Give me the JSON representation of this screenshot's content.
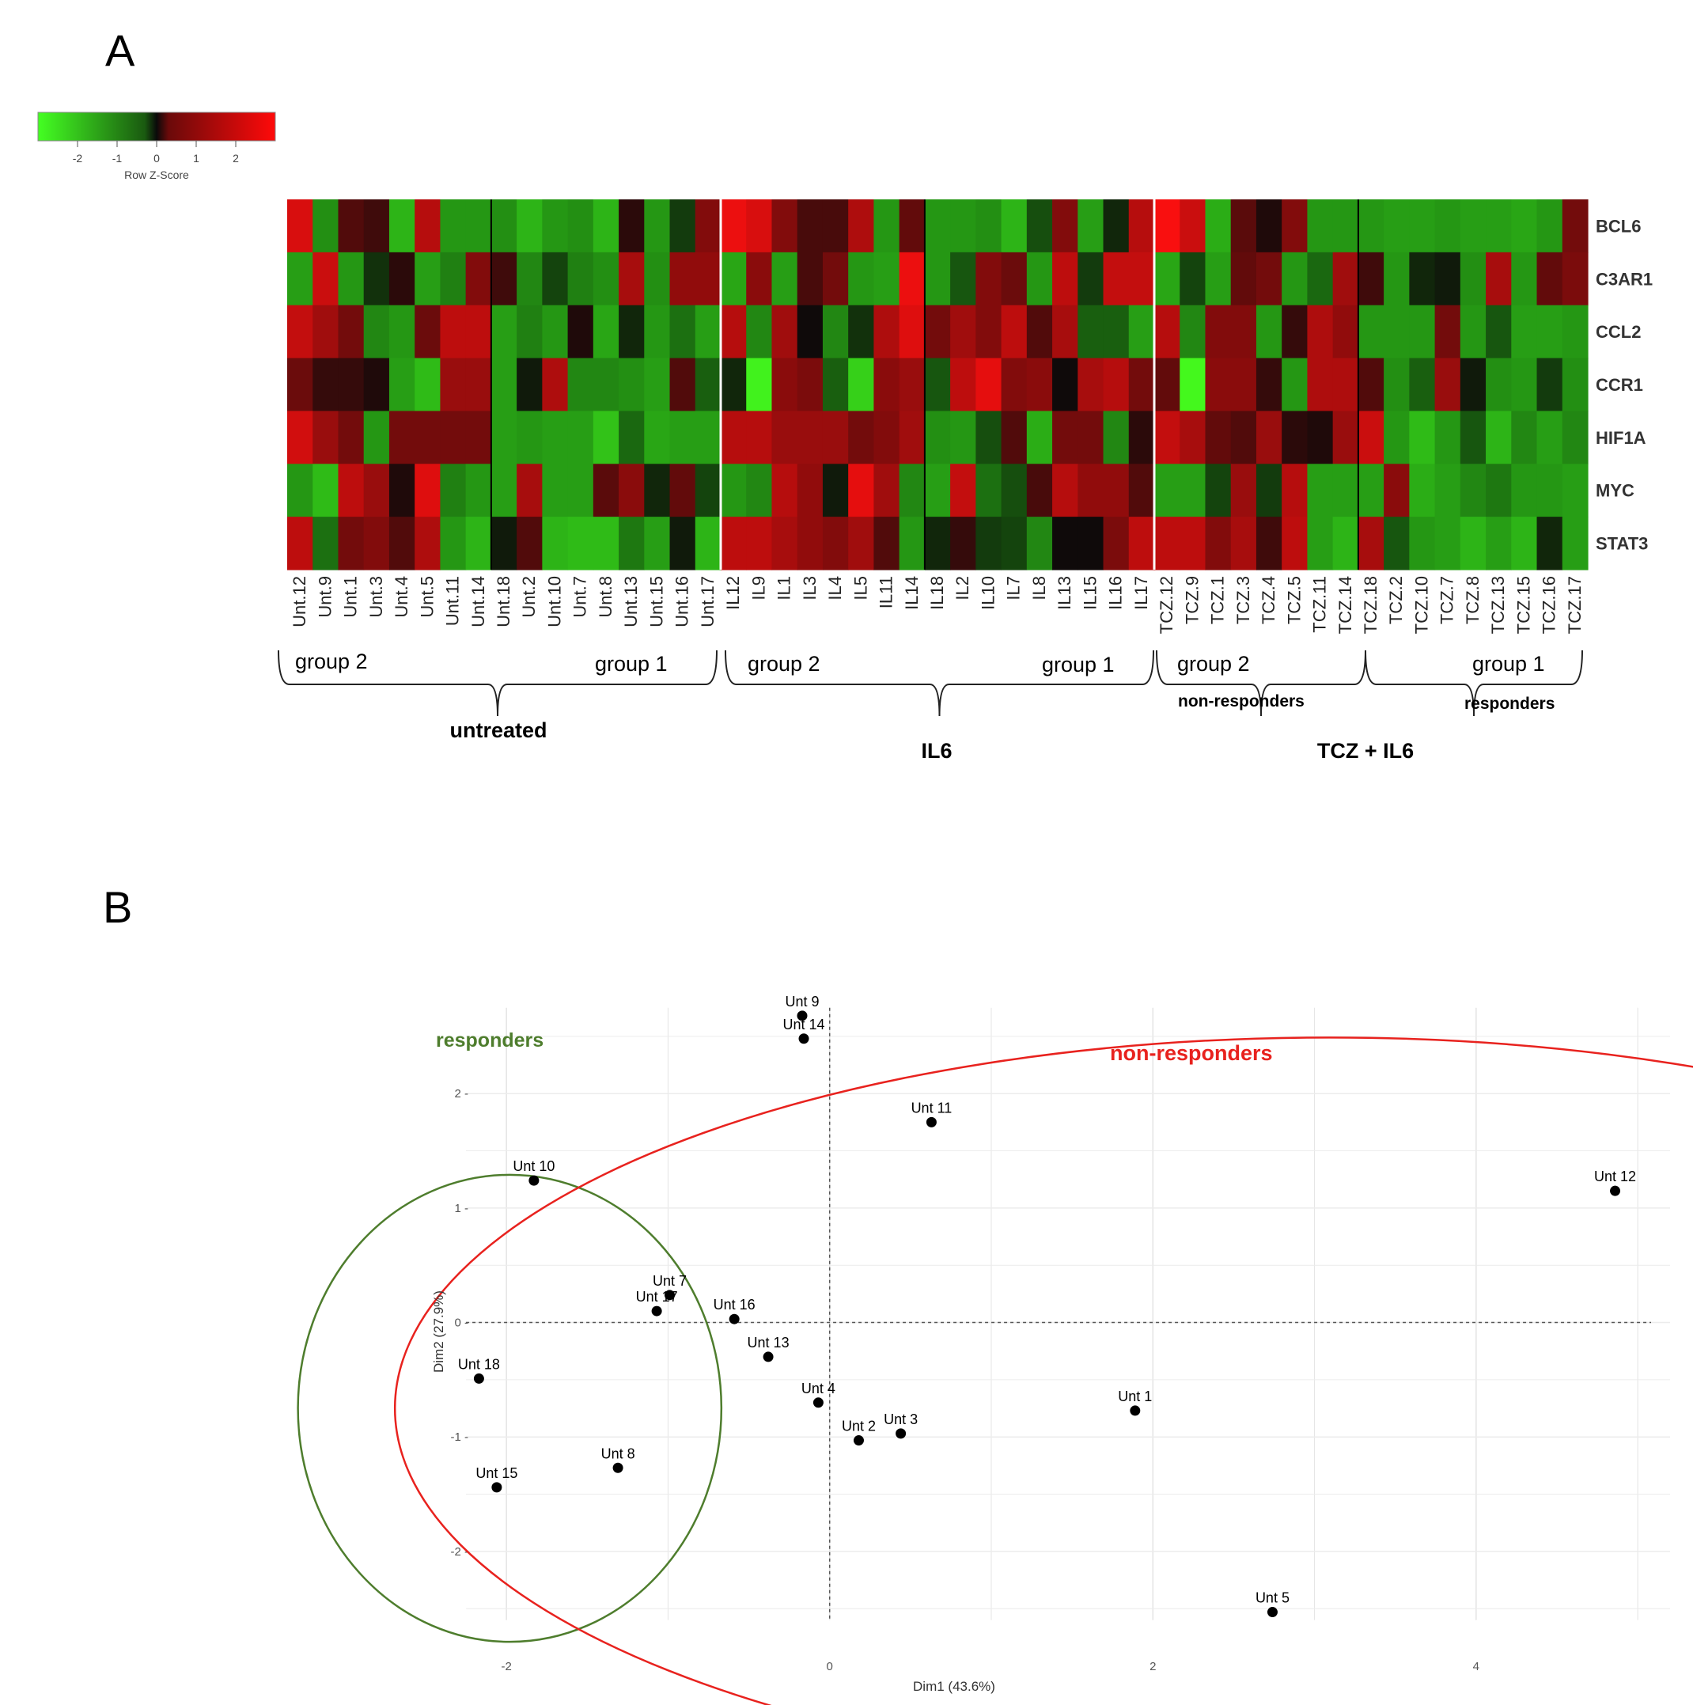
{
  "panels": {
    "a": "A",
    "b": "B"
  },
  "heatmap": {
    "legend": {
      "title": "Row Z-Score",
      "ticks": [
        "-2",
        "-1",
        "0",
        "1",
        "2"
      ]
    },
    "genes": [
      "BCL6",
      "C3AR1",
      "CCL2",
      "CCR1",
      "HIF1A",
      "MYC",
      "STAT3"
    ],
    "samples": [
      "Unt.12",
      "Unt.9",
      "Unt.1",
      "Unt.3",
      "Unt.4",
      "Unt.5",
      "Unt.11",
      "Unt.14",
      "Unt.18",
      "Unt.2",
      "Unt.10",
      "Unt.7",
      "Unt.8",
      "Unt.13",
      "Unt.15",
      "Unt.16",
      "Unt.17",
      "IL12",
      "IL9",
      "IL1",
      "IL3",
      "IL4",
      "IL5",
      "IL11",
      "IL14",
      "IL18",
      "IL2",
      "IL10",
      "IL7",
      "IL8",
      "IL13",
      "IL15",
      "IL16",
      "IL17",
      "TCZ.12",
      "TCZ.9",
      "TCZ.1",
      "TCZ.3",
      "TCZ.4",
      "TCZ.5",
      "TCZ.11",
      "TCZ.14",
      "TCZ.18",
      "TCZ.2",
      "TCZ.10",
      "TCZ.7",
      "TCZ.8",
      "TCZ.13",
      "TCZ.15",
      "TCZ.16",
      "TCZ.17"
    ],
    "group_labels": [
      "group 2",
      "group 1",
      "group 2",
      "group 1",
      "group 2",
      "group 1"
    ],
    "conditions": [
      "untreated",
      "IL6",
      "TCZ + IL6"
    ],
    "subgroups": [
      "non-responders",
      "responders"
    ],
    "values": [
      [
        2.4,
        -1.4,
        0.6,
        0.4,
        -1.9,
        1.9,
        -1.5,
        -1.5,
        -1.4,
        -1.9,
        -1.5,
        -1.4,
        -1.9,
        0.2,
        -1.5,
        -0.4,
        1.2,
        2.7,
        2.4,
        1.2,
        0.5,
        0.5,
        1.8,
        -1.5,
        0.8,
        -1.5,
        -1.5,
        -1.4,
        -1.9,
        -0.6,
        1.2,
        -1.6,
        -0.2,
        1.9,
        2.9,
        2.2,
        -1.8,
        0.7,
        0.1,
        1.2,
        -1.5,
        -1.5,
        -1.5,
        -1.6,
        -1.6,
        -1.5,
        -1.6,
        -1.6,
        -1.7,
        -1.5,
        1.0
      ],
      [
        -1.6,
        2.2,
        -1.5,
        -0.3,
        0.2,
        -1.6,
        -1.2,
        1.2,
        0.4,
        -1.3,
        -0.5,
        -1.2,
        -1.4,
        1.7,
        -1.4,
        1.4,
        1.4,
        -1.7,
        1.3,
        -1.6,
        0.5,
        1.0,
        -1.5,
        -1.6,
        2.7,
        -1.5,
        -0.7,
        1.2,
        0.9,
        -1.5,
        2.0,
        -0.4,
        2.1,
        2.1,
        -1.7,
        -0.5,
        -1.6,
        0.8,
        1.0,
        -1.5,
        -0.9,
        1.6,
        0.4,
        -1.5,
        -0.2,
        -0.1,
        -1.4,
        1.7,
        -1.5,
        0.8,
        1.1
      ],
      [
        2.1,
        1.6,
        1.0,
        -1.3,
        -1.5,
        0.9,
        2.0,
        2.0,
        -1.6,
        -1.2,
        -1.5,
        0.1,
        -1.7,
        -0.2,
        -1.5,
        -1.0,
        -1.6,
        1.9,
        -1.3,
        1.6,
        0.0,
        -1.3,
        -0.3,
        1.8,
        2.5,
        1.0,
        1.6,
        1.2,
        2.0,
        0.6,
        1.7,
        -0.8,
        -0.8,
        -1.6,
        1.9,
        -1.3,
        1.2,
        1.2,
        -1.5,
        0.3,
        1.8,
        1.4,
        -1.5,
        -1.5,
        -1.5,
        1.0,
        -1.5,
        -0.7,
        -1.6,
        -1.6,
        -1.5
      ],
      [
        0.9,
        0.3,
        0.3,
        0.1,
        -1.6,
        -2.0,
        1.5,
        1.5,
        -1.6,
        -0.1,
        1.8,
        -1.3,
        -1.3,
        -1.4,
        -1.6,
        0.6,
        -0.8,
        -0.2,
        -2.8,
        1.3,
        1.1,
        -0.8,
        -2.3,
        1.3,
        1.5,
        -0.7,
        2.0,
        2.6,
        1.2,
        1.3,
        0.0,
        1.7,
        1.9,
        1.0,
        0.8,
        -2.9,
        1.3,
        1.3,
        0.3,
        -1.5,
        1.8,
        1.8,
        0.6,
        -1.4,
        -0.8,
        1.5,
        -0.1,
        -1.4,
        -1.5,
        -0.4,
        -1.4
      ],
      [
        2.3,
        1.5,
        1.0,
        -1.5,
        1.0,
        1.0,
        1.0,
        1.0,
        -1.6,
        -1.5,
        -1.6,
        -1.6,
        -2.1,
        -0.9,
        -1.7,
        -1.6,
        -1.6,
        1.9,
        1.9,
        1.5,
        1.5,
        1.5,
        1.0,
        1.2,
        1.6,
        -1.4,
        -1.5,
        -0.6,
        0.6,
        -1.8,
        1.0,
        1.0,
        -1.3,
        0.2,
        2.1,
        1.7,
        0.8,
        0.6,
        1.5,
        0.2,
        0.1,
        1.5,
        2.2,
        -1.5,
        -2.0,
        -1.5,
        -0.7,
        -1.9,
        -1.3,
        -1.6,
        -1.3
      ],
      [
        -1.5,
        -2.0,
        2.0,
        1.5,
        0.1,
        2.5,
        -1.2,
        -1.5,
        -1.6,
        1.7,
        -1.6,
        -1.6,
        0.7,
        1.3,
        -0.2,
        0.8,
        -0.5,
        -1.5,
        -1.3,
        1.9,
        1.4,
        -0.1,
        2.6,
        1.6,
        -1.3,
        -1.6,
        2.1,
        -1.0,
        -0.6,
        0.5,
        1.9,
        1.4,
        1.4,
        0.6,
        -1.6,
        -1.6,
        -0.5,
        1.5,
        -0.4,
        1.9,
        -1.6,
        -1.6,
        -1.6,
        1.3,
        -1.8,
        -1.6,
        -1.3,
        -1.1,
        -1.5,
        -1.5,
        -1.6
      ],
      [
        2.0,
        -1.0,
        1.0,
        1.2,
        0.6,
        1.8,
        -1.5,
        -1.9,
        -0.1,
        0.6,
        -1.9,
        -2.0,
        -2.0,
        -1.1,
        -1.6,
        -0.1,
        -1.9,
        2.0,
        2.0,
        1.7,
        1.4,
        1.2,
        1.6,
        0.6,
        -1.5,
        -0.2,
        0.3,
        -0.4,
        -0.5,
        -1.3,
        0.0,
        0.0,
        1.1,
        2.0,
        2.0,
        2.0,
        1.2,
        1.7,
        0.4,
        2.0,
        -1.6,
        -1.9,
        1.7,
        -0.7,
        -1.5,
        -1.6,
        -1.9,
        -1.6,
        -1.9,
        -0.2,
        -1.6
      ]
    ]
  },
  "pca": {
    "chart_data": {
      "type": "scatter",
      "xlabel": "Dim1 (43.6%)",
      "ylabel": "Dim2 (27.9%)",
      "xlim": [
        -2.5,
        5.2
      ],
      "ylim": [
        -3.1,
        2.9
      ],
      "xticks": [
        "-2",
        "0",
        "2",
        "4"
      ],
      "yticks": [
        "2",
        "1",
        "0",
        "-1",
        "-2"
      ],
      "points": [
        {
          "label": "Unt 9",
          "x": -0.17,
          "y": 2.68
        },
        {
          "label": "Unt 14",
          "x": -0.16,
          "y": 2.48
        },
        {
          "label": "Unt 11",
          "x": 0.63,
          "y": 1.75
        },
        {
          "label": "Unt 12",
          "x": 4.86,
          "y": 1.15
        },
        {
          "label": "Unt 10",
          "x": -1.83,
          "y": 1.24
        },
        {
          "label": "Unt 7",
          "x": -0.99,
          "y": 0.24
        },
        {
          "label": "Unt 17",
          "x": -1.07,
          "y": 0.1
        },
        {
          "label": "Unt 16",
          "x": -0.59,
          "y": 0.03
        },
        {
          "label": "Unt 13",
          "x": -0.38,
          "y": -0.3
        },
        {
          "label": "Unt 18",
          "x": -2.17,
          "y": -0.49
        },
        {
          "label": "Unt 4",
          "x": -0.07,
          "y": -0.7
        },
        {
          "label": "Unt 1",
          "x": 1.89,
          "y": -0.77
        },
        {
          "label": "Unt 3",
          "x": 0.44,
          "y": -0.97
        },
        {
          "label": "Unt 2",
          "x": 0.18,
          "y": -1.03
        },
        {
          "label": "Unt 8",
          "x": -1.31,
          "y": -1.27
        },
        {
          "label": "Unt 15",
          "x": -2.06,
          "y": -1.44
        },
        {
          "label": "Unt 5",
          "x": 2.74,
          "y": -2.53
        }
      ],
      "clusters": [
        {
          "label": "responders",
          "color": "#4e7d2d",
          "cx": -1.98,
          "cy": -0.75,
          "rx": 1.31,
          "ry": 2.04
        },
        {
          "label": "non-responders",
          "color": "#e8221e",
          "cx": 3.09,
          "cy": -0.75,
          "rx": 5.78,
          "ry": 3.24
        }
      ],
      "grid": true
    }
  }
}
